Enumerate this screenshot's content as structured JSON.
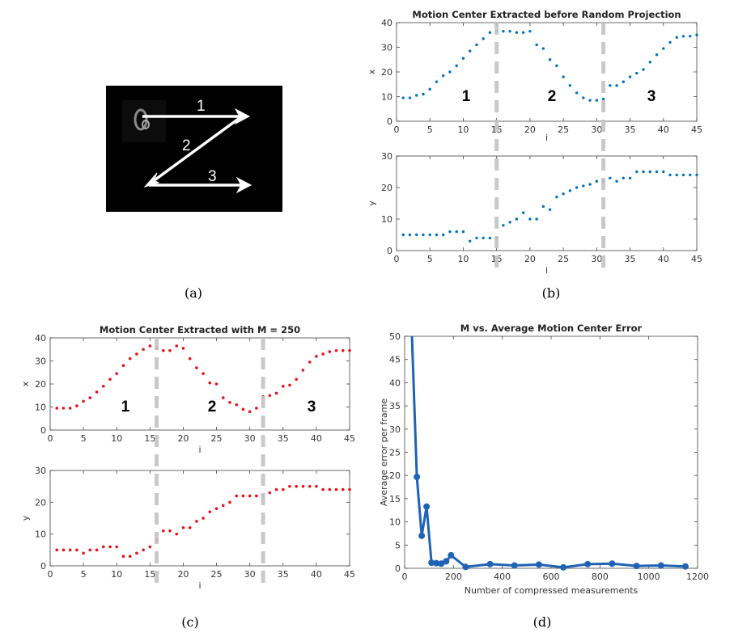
{
  "captions": [
    "(a)",
    "(b)",
    "(c)",
    "(d)"
  ],
  "colors": {
    "blue": "#0072bd",
    "red": "#e8141b",
    "dash": "#c4c4c4",
    "dline": "#1f63b5"
  },
  "panel_a": {
    "labels": [
      "1",
      "2",
      "3"
    ]
  },
  "chart_data": [
    {
      "type": "scatter",
      "panel": "b",
      "title": "Motion Center Extracted before Random Projection",
      "xlabel": "i",
      "ylabel": "x",
      "xlim": [
        0,
        45
      ],
      "ylim": [
        0,
        40
      ],
      "xticks": [
        0,
        5,
        10,
        15,
        20,
        25,
        30,
        35,
        40,
        45
      ],
      "yticks": [
        0,
        10,
        20,
        30,
        40
      ],
      "x": [
        1,
        2,
        3,
        4,
        5,
        6,
        7,
        8,
        9,
        10,
        11,
        12,
        13,
        14,
        15,
        16,
        17,
        18,
        19,
        20,
        21,
        22,
        23,
        24,
        25,
        26,
        27,
        28,
        29,
        30,
        31,
        32,
        33,
        34,
        35,
        36,
        37,
        38,
        39,
        40,
        41,
        42,
        43,
        44,
        45
      ],
      "y": [
        9.5,
        9.5,
        10.5,
        11,
        13,
        16,
        18.5,
        20,
        22.5,
        25.5,
        28.5,
        31,
        33.5,
        36,
        36.5,
        36.5,
        36.5,
        36,
        36,
        36.5,
        31,
        29.5,
        25,
        22.5,
        18,
        14.5,
        11.5,
        9.5,
        8.5,
        8.5,
        9,
        14.5,
        14.5,
        16,
        18,
        19.5,
        21,
        24,
        27,
        29.5,
        32,
        34,
        34.5,
        34.5,
        35
      ],
      "markers": [
        "1",
        "2",
        "3"
      ],
      "boundaries": [
        15,
        31
      ]
    },
    {
      "type": "scatter",
      "panel": "b",
      "xlabel": "i",
      "ylabel": "y",
      "xlim": [
        0,
        45
      ],
      "ylim": [
        0,
        30
      ],
      "xticks": [
        0,
        5,
        10,
        15,
        20,
        25,
        30,
        35,
        40,
        45
      ],
      "yticks": [
        0,
        10,
        20,
        30
      ],
      "x": [
        1,
        2,
        3,
        4,
        5,
        6,
        7,
        8,
        9,
        10,
        11,
        12,
        13,
        14,
        15,
        16,
        17,
        18,
        19,
        20,
        21,
        22,
        23,
        24,
        25,
        26,
        27,
        28,
        29,
        30,
        31,
        32,
        33,
        34,
        35,
        36,
        37,
        38,
        39,
        40,
        41,
        42,
        43,
        44,
        45
      ],
      "y": [
        5,
        5,
        5,
        5,
        5,
        5,
        5,
        6,
        6,
        6,
        3,
        4,
        4,
        4,
        4,
        8,
        9,
        10,
        12,
        10,
        10,
        14,
        13,
        17,
        18,
        19,
        20,
        20.5,
        21,
        22,
        22,
        23,
        22,
        23,
        23,
        25,
        25,
        25,
        25,
        25,
        24,
        24,
        24,
        24,
        24
      ],
      "boundaries": [
        15,
        31
      ]
    },
    {
      "type": "scatter",
      "panel": "c",
      "title": "Motion Center Extracted with M = 250",
      "xlabel": "i",
      "ylabel": "x",
      "xlim": [
        0,
        45
      ],
      "ylim": [
        0,
        40
      ],
      "xticks": [
        0,
        5,
        10,
        15,
        20,
        25,
        30,
        35,
        40,
        45
      ],
      "yticks": [
        0,
        10,
        20,
        30,
        40
      ],
      "x": [
        1,
        2,
        3,
        4,
        5,
        6,
        7,
        8,
        9,
        10,
        11,
        12,
        13,
        14,
        15,
        16,
        17,
        18,
        19,
        20,
        21,
        22,
        23,
        24,
        25,
        26,
        27,
        28,
        29,
        30,
        31,
        32,
        33,
        34,
        35,
        36,
        37,
        38,
        39,
        40,
        41,
        42,
        43,
        44,
        45
      ],
      "y": [
        9.5,
        9.5,
        9.5,
        10.5,
        12.5,
        14,
        16.5,
        19,
        22,
        24.5,
        28,
        31,
        33,
        35,
        36.5,
        35.5,
        34.5,
        34.5,
        36.5,
        35.5,
        31,
        27,
        24.5,
        20.5,
        20,
        14,
        12,
        11,
        9,
        8,
        9.5,
        14.5,
        15,
        16,
        19,
        19.5,
        22,
        26,
        29.5,
        32,
        33,
        34,
        34.5,
        34.5,
        34.5
      ],
      "markers": [
        "1",
        "2",
        "3"
      ],
      "boundaries": [
        16,
        32
      ]
    },
    {
      "type": "scatter",
      "panel": "c",
      "xlabel": "i",
      "ylabel": "y",
      "xlim": [
        0,
        45
      ],
      "ylim": [
        0,
        30
      ],
      "xticks": [
        0,
        5,
        10,
        15,
        20,
        25,
        30,
        35,
        40,
        45
      ],
      "yticks": [
        0,
        10,
        20,
        30
      ],
      "x": [
        1,
        2,
        3,
        4,
        5,
        6,
        7,
        8,
        9,
        10,
        11,
        12,
        13,
        14,
        15,
        16,
        17,
        18,
        19,
        20,
        21,
        22,
        23,
        24,
        25,
        26,
        27,
        28,
        29,
        30,
        31,
        32,
        33,
        34,
        35,
        36,
        37,
        38,
        39,
        40,
        41,
        42,
        43,
        44,
        45
      ],
      "y": [
        5,
        5,
        5,
        5,
        4,
        5,
        5,
        6,
        6,
        6,
        3,
        3,
        4,
        5,
        6,
        8,
        11,
        11,
        10,
        12,
        12,
        14,
        15,
        17,
        18,
        19,
        20,
        22,
        22,
        22,
        22,
        22,
        23,
        24,
        24,
        25,
        25,
        25,
        25,
        25,
        24,
        24,
        24,
        24,
        24
      ],
      "boundaries": [
        16,
        32
      ]
    },
    {
      "type": "line",
      "panel": "d",
      "title": "M vs. Average Motion Center Error",
      "xlabel": "Number of compressed measurements",
      "ylabel": "Average error per frame",
      "xlim": [
        0,
        1200
      ],
      "ylim": [
        0,
        50
      ],
      "xticks": [
        0,
        200,
        400,
        600,
        800,
        1000,
        1200
      ],
      "yticks": [
        0,
        5,
        10,
        15,
        20,
        25,
        30,
        35,
        40,
        45,
        50
      ],
      "x": [
        30,
        50,
        70,
        90,
        110,
        130,
        150,
        170,
        190,
        250,
        350,
        450,
        550,
        650,
        750,
        850,
        950,
        1050,
        1150
      ],
      "y": [
        50,
        19.7,
        7,
        13.3,
        1.2,
        1.1,
        1,
        1.5,
        2.8,
        0.3,
        0.9,
        0.6,
        0.8,
        0.2,
        0.9,
        1.0,
        0.5,
        0.6,
        0.4
      ]
    }
  ]
}
